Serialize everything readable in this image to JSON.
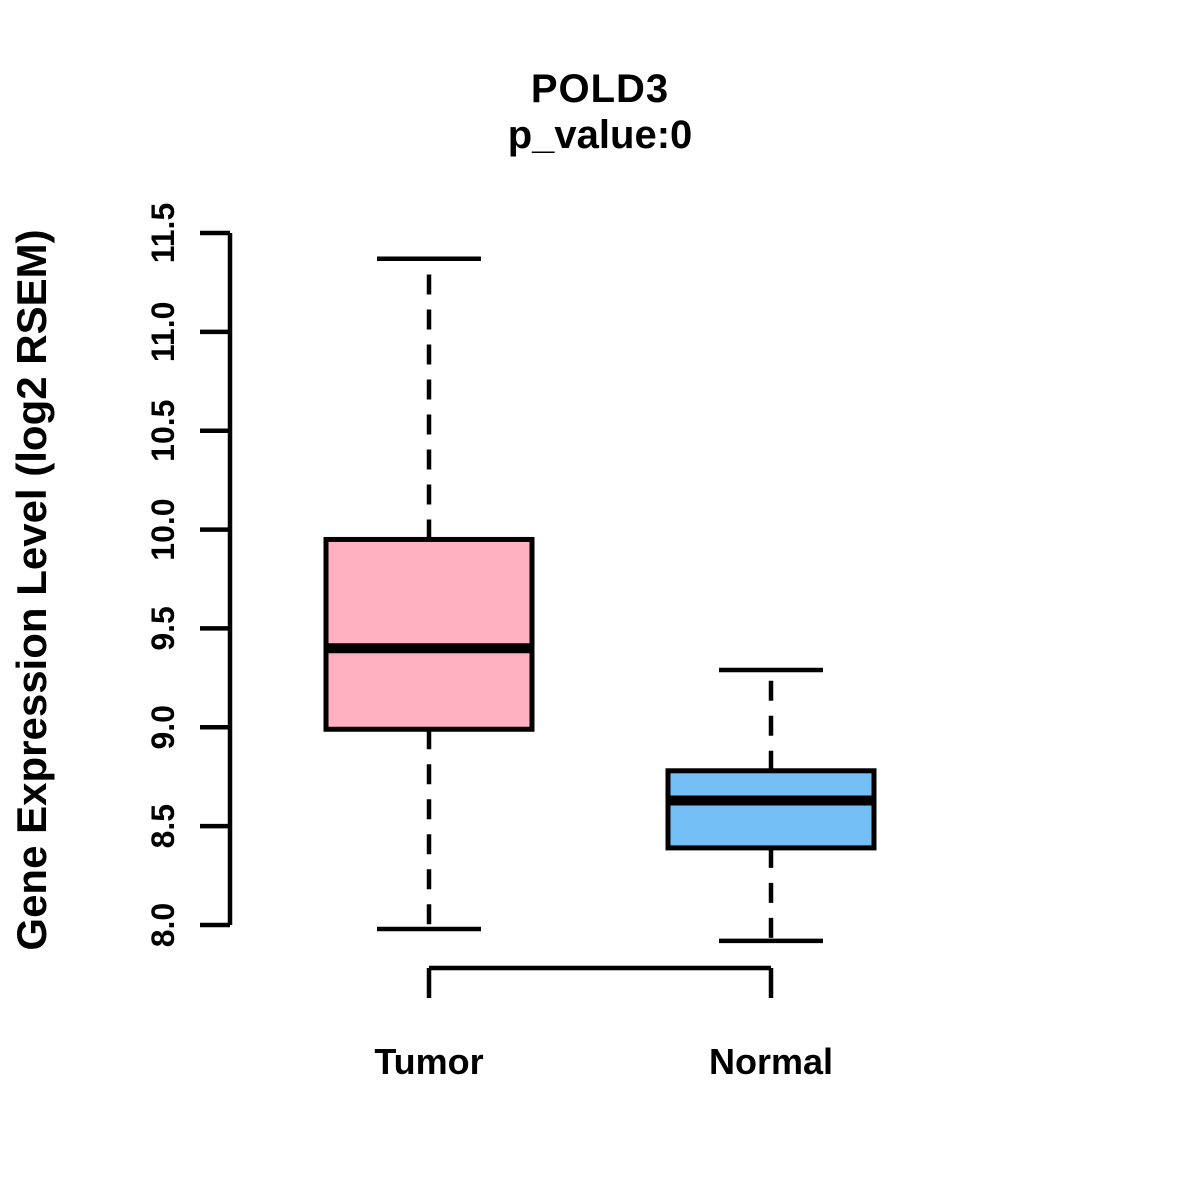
{
  "figure": {
    "background_color": "#ffffff",
    "text_color": "#000000"
  },
  "chart_data": {
    "type": "boxplot",
    "title": "POLD3",
    "subtitle": "p_value:0",
    "ylabel": "Gene Expression Level (log2 RSEM)",
    "xlabel": "",
    "categories": [
      "Tumor",
      "Normal"
    ],
    "ylim": [
      8.0,
      11.5
    ],
    "yticks": [
      8.0,
      8.5,
      9.0,
      9.5,
      10.0,
      10.5,
      11.0,
      11.5
    ],
    "grid": false,
    "legend": "none",
    "whisker_style": "dashed",
    "series": [
      {
        "name": "Tumor",
        "lower_whisker": 7.98,
        "q1": 8.99,
        "median": 9.4,
        "q3": 9.95,
        "upper_whisker": 11.37,
        "fill_color": "#FFB0C1",
        "stroke_color": "#000000"
      },
      {
        "name": "Normal",
        "lower_whisker": 7.92,
        "q1": 8.39,
        "median": 8.63,
        "q3": 8.78,
        "upper_whisker": 9.29,
        "fill_color": "#74BFF5",
        "stroke_color": "#000000"
      }
    ]
  }
}
